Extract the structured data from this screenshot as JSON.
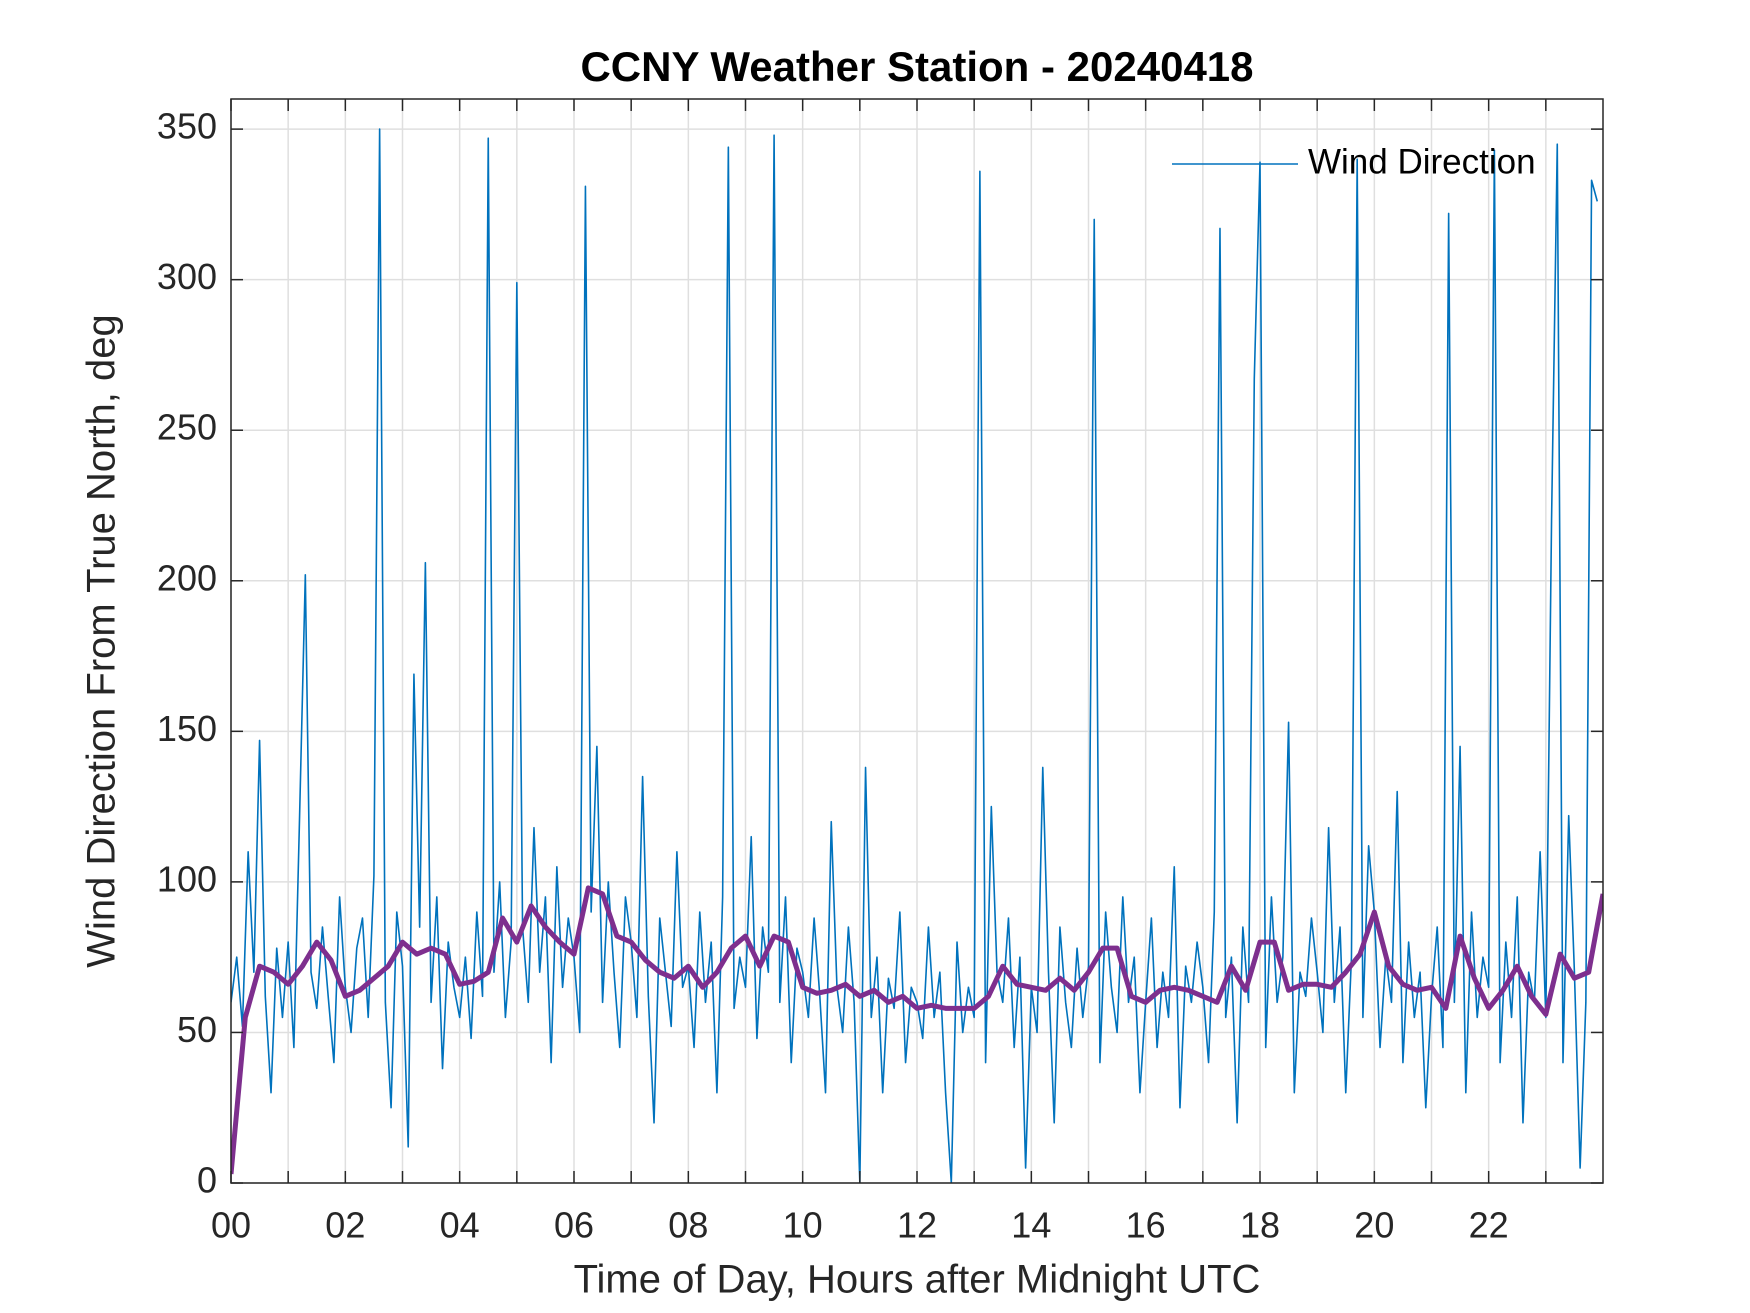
{
  "chart_data": {
    "type": "line",
    "title": "CCNY Weather Station - 20240418",
    "xlabel": "Time of Day, Hours after Midnight UTC",
    "ylabel": "Wind Direction From True North, deg",
    "xlim": [
      0,
      24
    ],
    "ylim": [
      0,
      360
    ],
    "xticks": [
      {
        "value": 0,
        "label": "00"
      },
      {
        "value": 2,
        "label": "02"
      },
      {
        "value": 4,
        "label": "04"
      },
      {
        "value": 6,
        "label": "06"
      },
      {
        "value": 8,
        "label": "08"
      },
      {
        "value": 10,
        "label": "10"
      },
      {
        "value": 12,
        "label": "12"
      },
      {
        "value": 14,
        "label": "14"
      },
      {
        "value": 16,
        "label": "16"
      },
      {
        "value": 18,
        "label": "18"
      },
      {
        "value": 20,
        "label": "20"
      },
      {
        "value": 22,
        "label": "22"
      }
    ],
    "xminorticks": [
      1,
      3,
      5,
      7,
      9,
      11,
      13,
      15,
      17,
      19,
      21,
      23
    ],
    "yticks": [
      0,
      50,
      100,
      150,
      200,
      250,
      300,
      350
    ],
    "grid": true,
    "legend": "upper right",
    "series": [
      {
        "name": "Wind Direction",
        "color": "#0072BD",
        "x": [
          0,
          0.1,
          0.2,
          0.3,
          0.4,
          0.5,
          0.6,
          0.7,
          0.8,
          0.9,
          1,
          1.1,
          1.2,
          1.3,
          1.4,
          1.5,
          1.6,
          1.7,
          1.8,
          1.9,
          2,
          2.1,
          2.2,
          2.3,
          2.4,
          2.5,
          2.6,
          2.7,
          2.8,
          2.9,
          3,
          3.1,
          3.2,
          3.3,
          3.4,
          3.5,
          3.6,
          3.7,
          3.8,
          3.9,
          4,
          4.1,
          4.2,
          4.3,
          4.4,
          4.5,
          4.6,
          4.7,
          4.8,
          4.9,
          5,
          5.1,
          5.2,
          5.3,
          5.4,
          5.5,
          5.6,
          5.7,
          5.8,
          5.9,
          6,
          6.1,
          6.2,
          6.3,
          6.4,
          6.5,
          6.6,
          6.7,
          6.8,
          6.9,
          7,
          7.1,
          7.2,
          7.3,
          7.4,
          7.5,
          7.6,
          7.7,
          7.8,
          7.9,
          8,
          8.1,
          8.2,
          8.3,
          8.4,
          8.5,
          8.6,
          8.7,
          8.8,
          8.9,
          9,
          9.1,
          9.2,
          9.3,
          9.4,
          9.5,
          9.6,
          9.7,
          9.8,
          9.9,
          10,
          10.1,
          10.2,
          10.3,
          10.4,
          10.5,
          10.6,
          10.7,
          10.8,
          10.9,
          11,
          11.1,
          11.2,
          11.3,
          11.4,
          11.5,
          11.6,
          11.7,
          11.8,
          11.9,
          12,
          12.1,
          12.2,
          12.3,
          12.4,
          12.5,
          12.6,
          12.7,
          12.8,
          12.9,
          13,
          13.1,
          13.2,
          13.3,
          13.4,
          13.5,
          13.6,
          13.7,
          13.8,
          13.9,
          14,
          14.1,
          14.2,
          14.3,
          14.4,
          14.5,
          14.6,
          14.7,
          14.8,
          14.9,
          15,
          15.1,
          15.2,
          15.3,
          15.4,
          15.5,
          15.6,
          15.7,
          15.8,
          15.9,
          16,
          16.1,
          16.2,
          16.3,
          16.4,
          16.5,
          16.6,
          16.7,
          16.8,
          16.9,
          17,
          17.1,
          17.2,
          17.3,
          17.4,
          17.5,
          17.6,
          17.7,
          17.8,
          17.9,
          18,
          18.1,
          18.2,
          18.3,
          18.4,
          18.5,
          18.6,
          18.7,
          18.8,
          18.9,
          19,
          19.1,
          19.2,
          19.3,
          19.4,
          19.5,
          19.6,
          19.7,
          19.8,
          19.9,
          20,
          20.1,
          20.2,
          20.3,
          20.4,
          20.5,
          20.6,
          20.7,
          20.8,
          20.9,
          21,
          21.1,
          21.2,
          21.3,
          21.4,
          21.5,
          21.6,
          21.7,
          21.8,
          21.9,
          22,
          22.1,
          22.2,
          22.3,
          22.4,
          22.5,
          22.6,
          22.7,
          22.8,
          22.9,
          23,
          23.1,
          23.2,
          23.3,
          23.4,
          23.5,
          23.6,
          23.7,
          23.8,
          23.9
        ],
        "values": [
          60,
          75,
          52,
          110,
          70,
          147,
          62,
          30,
          78,
          55,
          80,
          45,
          122,
          202,
          70,
          58,
          85,
          62,
          40,
          95,
          65,
          50,
          78,
          88,
          55,
          102,
          350,
          60,
          25,
          90,
          72,
          12,
          169,
          85,
          206,
          60,
          95,
          38,
          80,
          65,
          55,
          75,
          48,
          90,
          62,
          347,
          70,
          100,
          55,
          80,
          299,
          85,
          60,
          118,
          70,
          95,
          40,
          105,
          65,
          88,
          75,
          50,
          331,
          90,
          145,
          60,
          100,
          70,
          45,
          95,
          80,
          55,
          135,
          62,
          20,
          88,
          70,
          52,
          110,
          65,
          72,
          45,
          90,
          60,
          80,
          30,
          95,
          344,
          58,
          75,
          65,
          115,
          48,
          85,
          70,
          348,
          60,
          95,
          40,
          78,
          70,
          55,
          88,
          62,
          30,
          120,
          65,
          50,
          85,
          60,
          0,
          138,
          55,
          75,
          30,
          68,
          58,
          90,
          40,
          65,
          60,
          48,
          85,
          55,
          70,
          30,
          0,
          80,
          50,
          65,
          55,
          336,
          40,
          125,
          70,
          60,
          88,
          45,
          75,
          5,
          65,
          50,
          138,
          70,
          20,
          85,
          60,
          45,
          78,
          55,
          72,
          320,
          40,
          90,
          65,
          50,
          95,
          60,
          75,
          30,
          60,
          88,
          45,
          70,
          55,
          105,
          25,
          72,
          60,
          80,
          65,
          40,
          90,
          317,
          55,
          75,
          20,
          85,
          60,
          267,
          339,
          45,
          95,
          60,
          75,
          153,
          30,
          70,
          62,
          88,
          70,
          50,
          118,
          60,
          85,
          30,
          75,
          340,
          55,
          112,
          90,
          45,
          75,
          60,
          130,
          40,
          80,
          55,
          70,
          25,
          62,
          85,
          45,
          322,
          60,
          145,
          30,
          90,
          55,
          75,
          65,
          343,
          40,
          80,
          55,
          95,
          20,
          70,
          60,
          110,
          55,
          220,
          345,
          40,
          122,
          70,
          5,
          60,
          333,
          326
        ]
      },
      {
        "color": "#7E2F8E",
        "x": [
          0,
          0.25,
          0.5,
          0.75,
          1,
          1.25,
          1.5,
          1.75,
          2,
          2.25,
          2.5,
          2.75,
          3,
          3.25,
          3.5,
          3.75,
          4,
          4.25,
          4.5,
          4.75,
          5,
          5.25,
          5.5,
          5.75,
          6,
          6.25,
          6.5,
          6.75,
          7,
          7.25,
          7.5,
          7.75,
          8,
          8.25,
          8.5,
          8.75,
          9,
          9.25,
          9.5,
          9.75,
          10,
          10.25,
          10.5,
          10.75,
          11,
          11.25,
          11.5,
          11.75,
          12,
          12.25,
          12.5,
          12.75,
          13,
          13.25,
          13.5,
          13.75,
          14,
          14.25,
          14.5,
          14.75,
          15,
          15.25,
          15.5,
          15.75,
          16,
          16.25,
          16.5,
          16.75,
          17,
          17.25,
          17.5,
          17.75,
          18,
          18.25,
          18.5,
          18.75,
          19,
          19.25,
          19.5,
          19.75,
          20,
          20.25,
          20.5,
          20.75,
          21,
          21.25,
          21.5,
          21.75,
          22,
          22.25,
          22.5,
          22.75,
          23,
          23.25,
          23.5,
          23.75,
          24
        ],
        "values": [
          3,
          55,
          72,
          70,
          66,
          72,
          80,
          74,
          62,
          64,
          68,
          72,
          80,
          76,
          78,
          76,
          66,
          67,
          70,
          88,
          80,
          92,
          85,
          80,
          76,
          98,
          96,
          82,
          80,
          74,
          70,
          68,
          72,
          65,
          70,
          78,
          82,
          72,
          82,
          80,
          65,
          63,
          64,
          66,
          62,
          64,
          60,
          62,
          58,
          59,
          58,
          58,
          58,
          62,
          72,
          66,
          65,
          64,
          68,
          64,
          70,
          78,
          78,
          62,
          60,
          64,
          65,
          64,
          62,
          60,
          72,
          64,
          80,
          80,
          64,
          66,
          66,
          65,
          70,
          76,
          90,
          72,
          66,
          64,
          65,
          58,
          82,
          68,
          58,
          64,
          72,
          62,
          56,
          76,
          68,
          70,
          96
        ]
      }
    ]
  }
}
